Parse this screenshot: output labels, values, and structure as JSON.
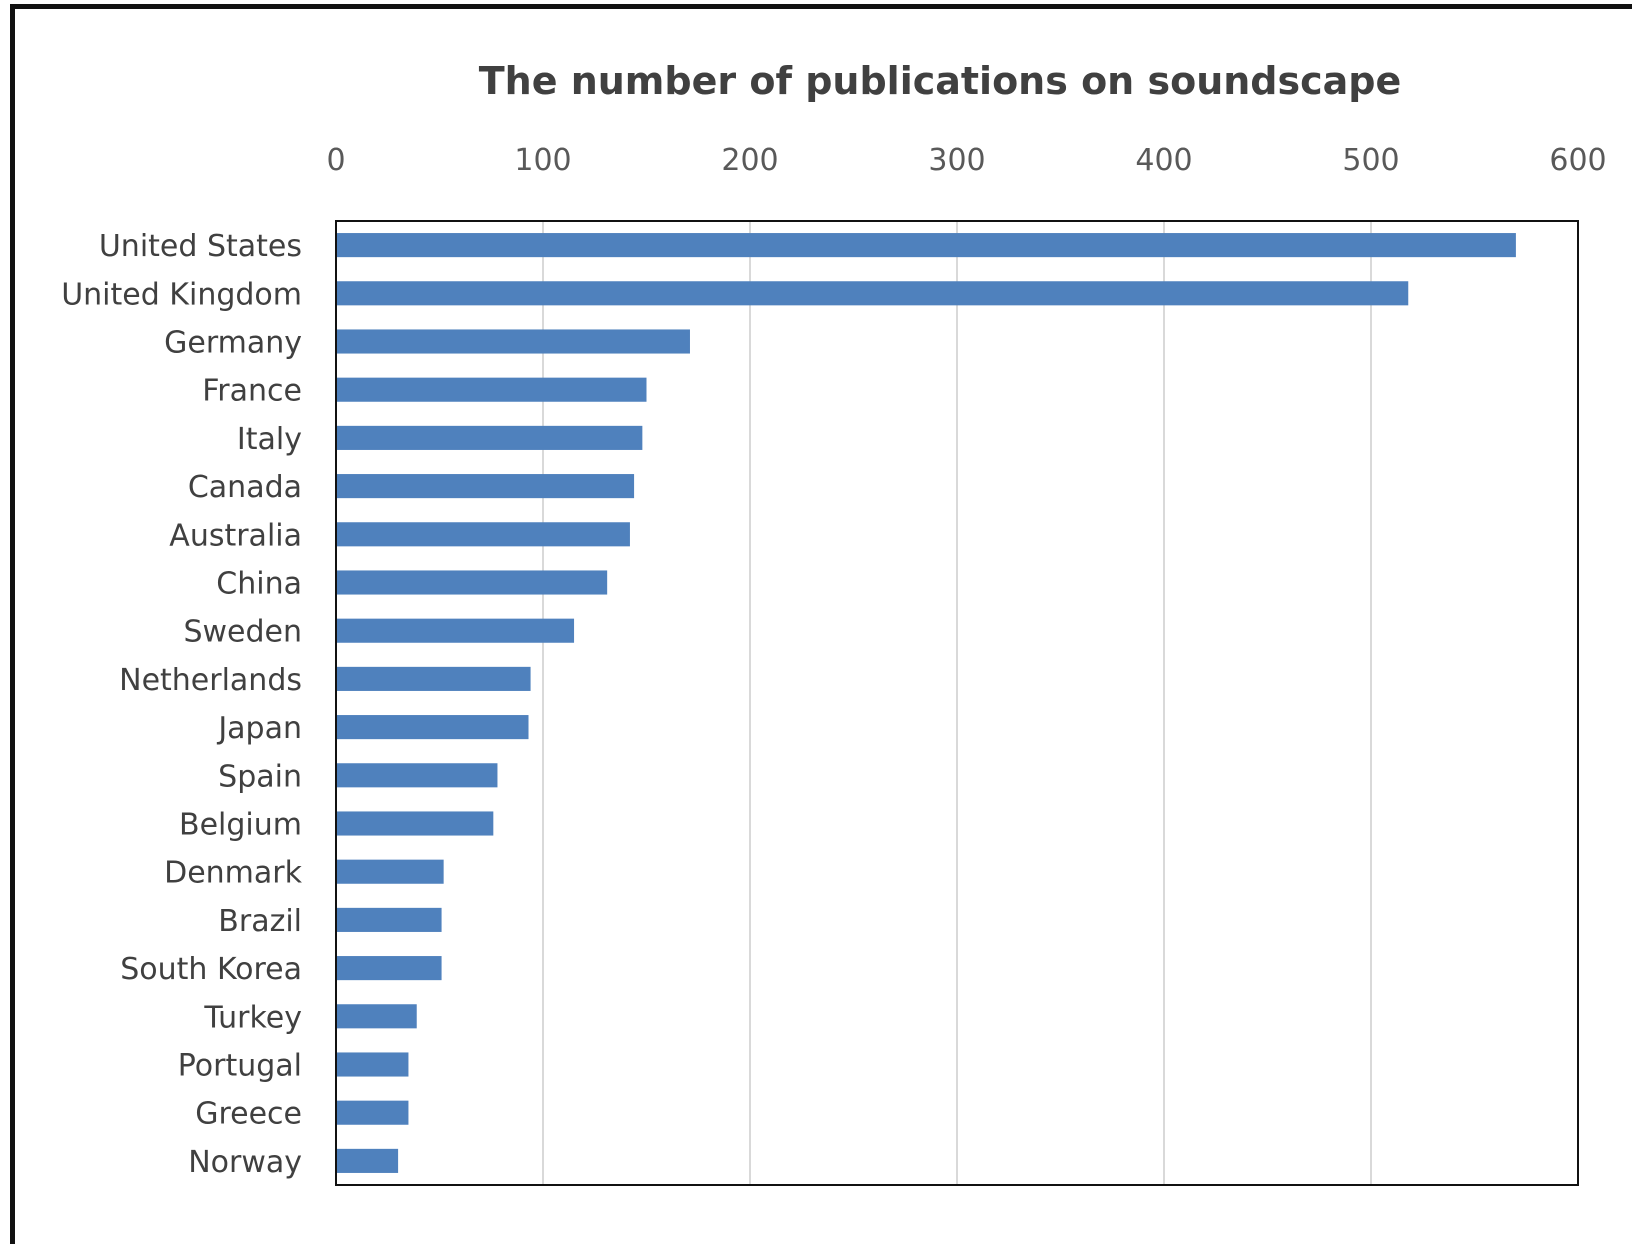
{
  "chart_data": {
    "type": "bar",
    "orientation": "horizontal",
    "title": "The number of publications on soundscape",
    "xlabel": "",
    "ylabel": "",
    "xlim": [
      0,
      600
    ],
    "x_ticks": [
      0,
      100,
      200,
      300,
      400,
      500,
      600
    ],
    "x_tick_labels": [
      "0",
      "100",
      "200",
      "300",
      "400",
      "500",
      "600"
    ],
    "x_axis_position": "top",
    "grid": "vertical",
    "legend": "none",
    "bar_color": "#4f81bd",
    "categories": [
      "United States",
      "United Kingdom",
      "Germany",
      "France",
      "Italy",
      "Canada",
      "Australia",
      "China",
      "Sweden",
      "Netherlands",
      "Japan",
      "Spain",
      "Belgium",
      "Denmark",
      "Brazil",
      "South Korea",
      "Turkey",
      "Portugal",
      "Greece",
      "Norway"
    ],
    "values": [
      570,
      518,
      171,
      150,
      148,
      144,
      142,
      131,
      115,
      94,
      93,
      78,
      76,
      52,
      51,
      51,
      39,
      35,
      35,
      30
    ]
  }
}
